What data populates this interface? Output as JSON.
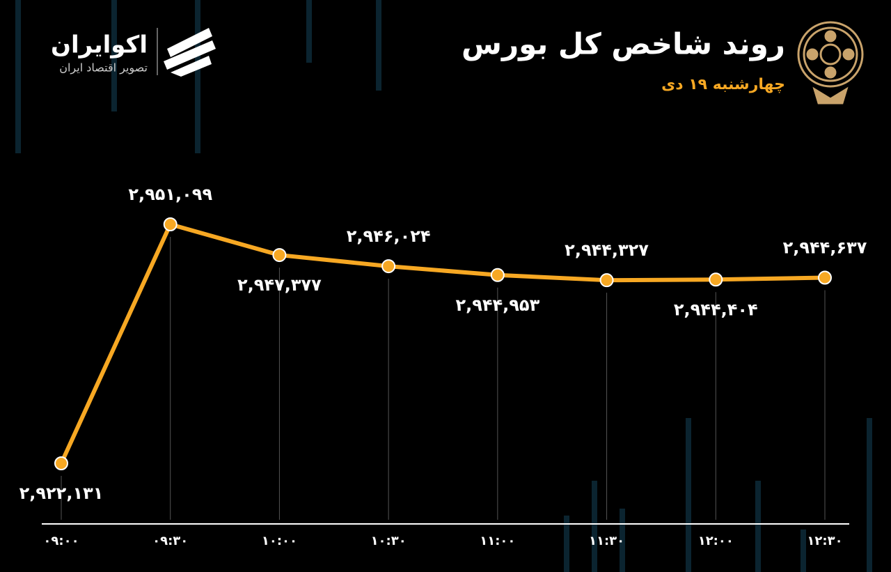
{
  "header": {
    "title": "روند شاخص کل بورس",
    "subtitle": "چهارشنبه ۱۹ دی",
    "brand": "اکوایران",
    "tagline": "تصویر اقتصاد ایران"
  },
  "chart_data": {
    "type": "line",
    "categories": [
      "۰۹:۰۰",
      "۰۹:۳۰",
      "۱۰:۰۰",
      "۱۰:۳۰",
      "۱۱:۰۰",
      "۱۱:۳۰",
      "۱۲:۰۰",
      "۱۲:۳۰"
    ],
    "values": [
      2922131,
      2951099,
      2947377,
      2946024,
      2944953,
      2944327,
      2944404,
      2944637
    ],
    "value_labels": [
      "۲,۹۲۲,۱۳۱",
      "۲,۹۵۱,۰۹۹",
      "۲,۹۴۷,۳۷۷",
      "۲,۹۴۶,۰۲۴",
      "۲,۹۴۴,۹۵۳",
      "۲,۹۴۴,۳۲۷",
      "۲,۹۴۴,۴۰۴",
      "۲,۹۴۴,۶۳۷"
    ],
    "color": "#f7a823"
  }
}
